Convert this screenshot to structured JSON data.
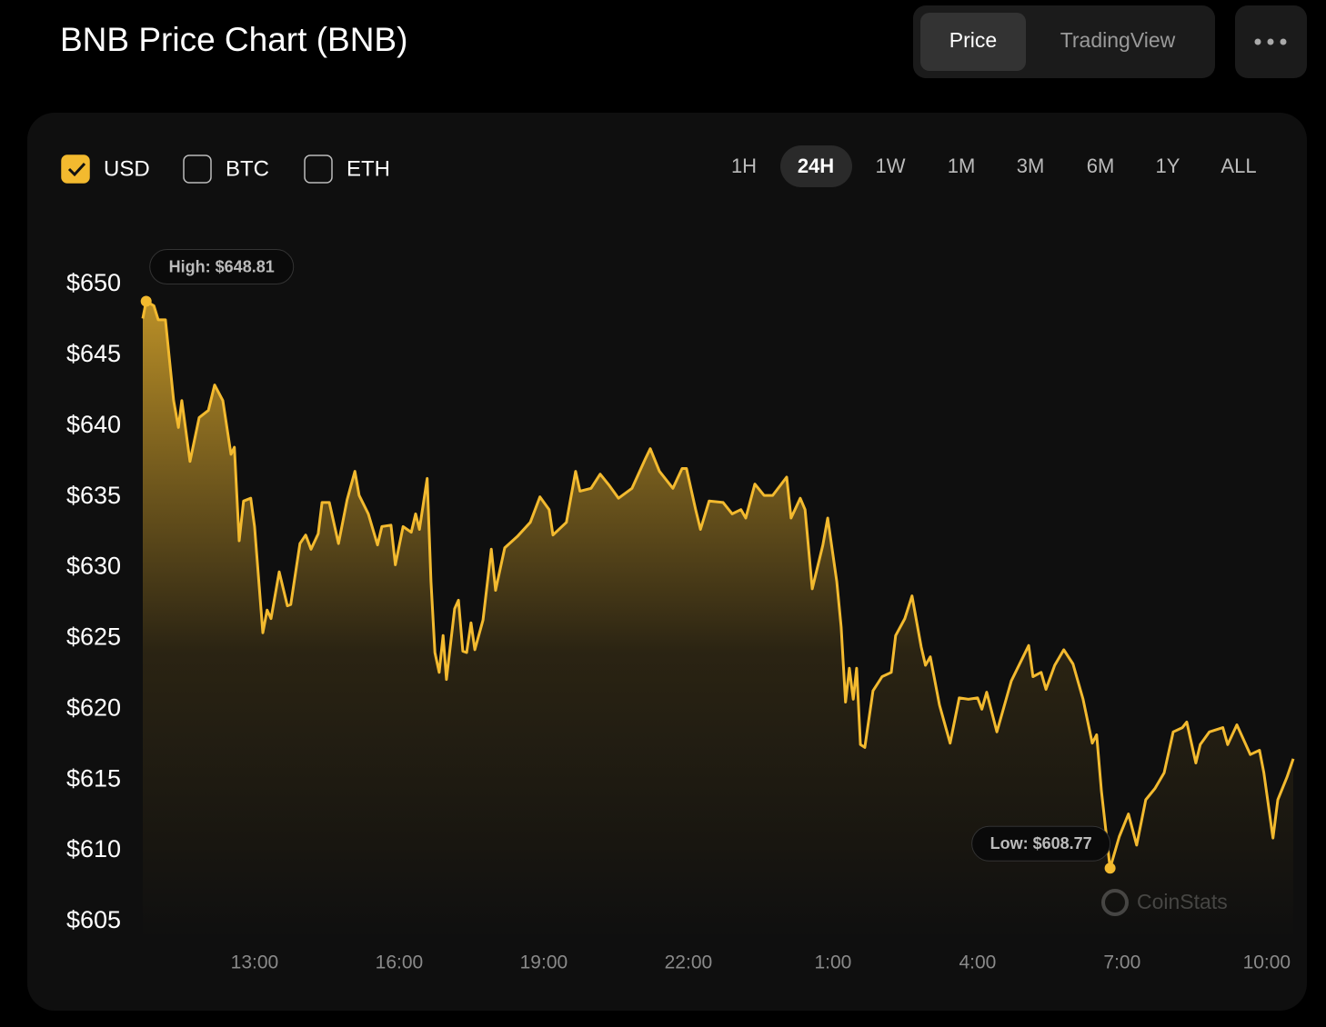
{
  "header": {
    "title": "BNB Price Chart (BNB)",
    "tabs": [
      "Price",
      "TradingView"
    ],
    "active_tab": 0
  },
  "currencies": [
    "USD",
    "BTC",
    "ETH"
  ],
  "checked_currency": 0,
  "ranges": [
    "1H",
    "24H",
    "1W",
    "1M",
    "3M",
    "6M",
    "1Y",
    "ALL"
  ],
  "active_range": 1,
  "watermark": "CoinStats",
  "chart_data": {
    "type": "line",
    "color": "#f3ba2f",
    "area": true,
    "high_label": "High: $648.81",
    "low_label": "Low: $608.77",
    "x": [
      10.68,
      10.75,
      10.91,
      11.0,
      11.15,
      11.32,
      11.42,
      11.49,
      11.66,
      11.85,
      12.04,
      12.17,
      12.34,
      12.51,
      12.58,
      12.68,
      12.77,
      12.92,
      13.0,
      13.17,
      13.26,
      13.34,
      13.51,
      13.68,
      13.75,
      13.94,
      14.06,
      14.17,
      14.32,
      14.4,
      14.55,
      14.74,
      14.92,
      15.08,
      15.17,
      15.36,
      15.55,
      15.64,
      15.83,
      15.92,
      16.08,
      16.25,
      16.34,
      16.42,
      16.58,
      16.66,
      16.74,
      16.83,
      16.91,
      16.98,
      17.15,
      17.23,
      17.32,
      17.4,
      17.49,
      17.57,
      17.74,
      17.91,
      18.0,
      18.19,
      18.45,
      18.72,
      18.92,
      19.11,
      19.19,
      19.47,
      19.66,
      19.75,
      19.98,
      20.17,
      20.36,
      20.55,
      20.83,
      21.11,
      21.21,
      21.4,
      21.68,
      21.87,
      21.96,
      22.15,
      22.25,
      22.43,
      22.72,
      22.91,
      23.09,
      23.19,
      23.38,
      23.57,
      23.75,
      24.04,
      24.13,
      24.32,
      24.42,
      24.57,
      24.79,
      24.89,
      25.08,
      25.17,
      25.26,
      25.34,
      25.42,
      25.49,
      25.57,
      25.66,
      25.83,
      26.02,
      26.21,
      26.3,
      26.49,
      26.64,
      26.83,
      26.92,
      27.02,
      27.21,
      27.43,
      27.62,
      27.81,
      28.0,
      28.09,
      28.19,
      28.4,
      28.7,
      29.06,
      29.15,
      29.32,
      29.42,
      29.6,
      29.79,
      29.98,
      30.19,
      30.38,
      30.47,
      30.57,
      30.75,
      30.94,
      31.13,
      31.3,
      31.49,
      31.68,
      31.87,
      32.06,
      32.25,
      32.34,
      32.53,
      32.62,
      32.81,
      33.09,
      33.19,
      33.38,
      33.66,
      33.85,
      33.94,
      34.13,
      34.23,
      34.42,
      34.55
    ],
    "values": [
      647.6,
      648.81,
      648.5,
      647.5,
      647.5,
      641.8,
      639.9,
      641.8,
      637.5,
      640.6,
      641.1,
      642.9,
      641.8,
      638.0,
      638.5,
      631.9,
      634.7,
      634.9,
      632.9,
      625.4,
      627.0,
      626.4,
      629.7,
      627.3,
      627.4,
      631.7,
      632.3,
      631.3,
      632.4,
      634.6,
      634.6,
      631.7,
      634.8,
      636.8,
      635.1,
      633.8,
      631.6,
      632.9,
      633.0,
      630.2,
      632.9,
      632.5,
      633.8,
      632.7,
      636.3,
      629.0,
      624.0,
      622.6,
      625.2,
      622.1,
      627.1,
      627.7,
      624.1,
      624.0,
      626.1,
      624.2,
      626.3,
      631.3,
      628.4,
      631.4,
      632.2,
      633.2,
      635.0,
      634.1,
      632.3,
      633.2,
      636.8,
      635.4,
      635.6,
      636.6,
      635.8,
      634.9,
      635.6,
      637.7,
      638.4,
      636.8,
      635.6,
      637.0,
      637.0,
      634.1,
      632.7,
      634.7,
      634.6,
      633.8,
      634.1,
      633.5,
      635.9,
      635.1,
      635.1,
      636.4,
      633.5,
      634.9,
      634.1,
      628.5,
      631.6,
      633.5,
      629.0,
      625.8,
      620.5,
      622.9,
      620.7,
      622.9,
      617.5,
      617.3,
      621.3,
      622.3,
      622.6,
      625.2,
      626.4,
      628.0,
      624.4,
      623.1,
      623.7,
      620.3,
      617.6,
      620.8,
      620.7,
      620.8,
      620.0,
      621.2,
      618.4,
      622.0,
      624.5,
      622.3,
      622.6,
      621.4,
      623.1,
      624.2,
      623.2,
      620.7,
      617.6,
      618.2,
      614.2,
      608.77,
      611.0,
      612.6,
      610.4,
      613.6,
      614.4,
      615.5,
      618.4,
      618.7,
      619.1,
      616.2,
      617.5,
      618.4,
      618.7,
      617.5,
      618.9,
      616.8,
      617.1,
      615.5,
      610.9,
      613.6,
      615.2,
      616.5
    ],
    "xlim": [
      10.68,
      34.55
    ],
    "xticks": [
      {
        "value": 13,
        "label": "13:00"
      },
      {
        "value": 16,
        "label": "16:00"
      },
      {
        "value": 19,
        "label": "19:00"
      },
      {
        "value": 22,
        "label": "22:00"
      },
      {
        "value": 25,
        "label": "1:00"
      },
      {
        "value": 28,
        "label": "4:00"
      },
      {
        "value": 31,
        "label": "7:00"
      },
      {
        "value": 34,
        "label": "10:00"
      }
    ],
    "ylim": [
      605,
      650
    ],
    "yticks": [
      {
        "value": 650,
        "label": "$650"
      },
      {
        "value": 645,
        "label": "$645"
      },
      {
        "value": 640,
        "label": "$640"
      },
      {
        "value": 635,
        "label": "$635"
      },
      {
        "value": 630,
        "label": "$630"
      },
      {
        "value": 625,
        "label": "$625"
      },
      {
        "value": 620,
        "label": "$620"
      },
      {
        "value": 615,
        "label": "$615"
      },
      {
        "value": 610,
        "label": "$610"
      },
      {
        "value": 605,
        "label": "$605"
      }
    ]
  }
}
